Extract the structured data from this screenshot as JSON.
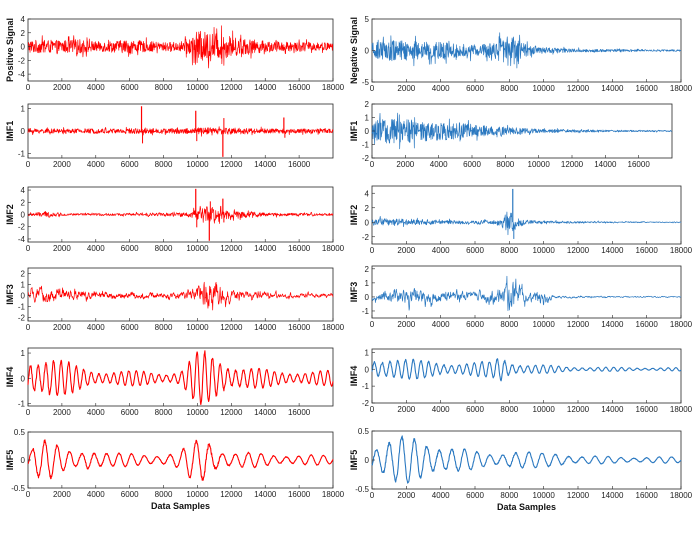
{
  "chart_data": [
    {
      "type": "line",
      "id": "L0",
      "ylabel": "Positive Signal",
      "xlabel": "",
      "color": "#ff0000",
      "ylim": [
        -5,
        4
      ],
      "yticks": [
        -4,
        -2,
        0,
        2,
        4
      ],
      "xlim": [
        0,
        18000
      ],
      "xticks": [
        0,
        2000,
        4000,
        6000,
        8000,
        10000,
        12000,
        14000,
        16000,
        18000
      ],
      "envelope": {
        "x": [
          0,
          1000,
          2000,
          3000,
          4000,
          5000,
          6000,
          7000,
          8000,
          9000,
          9500,
          10000,
          10500,
          11000,
          11500,
          12000,
          13000,
          14000,
          15000,
          16000,
          17000,
          18000
        ],
        "amp": [
          1.6,
          1.6,
          1.5,
          1.8,
          1.2,
          1.4,
          1.6,
          1.3,
          1.0,
          1.2,
          2.0,
          3.8,
          3.6,
          3.4,
          3.0,
          2.4,
          1.8,
          1.4,
          1.2,
          1.2,
          1.0,
          0.9
        ]
      }
    },
    {
      "type": "line",
      "id": "L1",
      "ylabel": "IMF1",
      "xlabel": "",
      "color": "#ff0000",
      "ylim": [
        -1.2,
        1.2
      ],
      "yticks": [
        -1,
        0,
        1
      ],
      "xlim": [
        0,
        18000
      ],
      "xticks": [
        0,
        2000,
        4000,
        6000,
        8000,
        10000,
        12000,
        14000,
        16000
      ],
      "envelope": {
        "x": [
          0,
          2000,
          4000,
          6000,
          8000,
          10000,
          12000,
          14000,
          16000,
          18000
        ],
        "amp": [
          0.18,
          0.16,
          0.18,
          0.2,
          0.18,
          0.24,
          0.26,
          0.18,
          0.16,
          0.16
        ]
      },
      "spikes": {
        "x": [
          6700,
          9900,
          11500,
          15100
        ],
        "y": [
          1.1,
          0.9,
          -1.15,
          0.6
        ]
      }
    },
    {
      "type": "line",
      "id": "L2",
      "ylabel": "IMF2",
      "xlabel": "",
      "color": "#ff0000",
      "ylim": [
        -4.5,
        4.5
      ],
      "yticks": [
        -4,
        -2,
        0,
        2,
        4
      ],
      "xlim": [
        0,
        18000
      ],
      "xticks": [
        0,
        2000,
        4000,
        6000,
        8000,
        10000,
        12000,
        14000,
        16000,
        18000
      ],
      "envelope": {
        "x": [
          0,
          1000,
          2000,
          4000,
          6000,
          8000,
          9500,
          10000,
          10500,
          11000,
          11500,
          12000,
          13000,
          14000,
          16000,
          18000
        ],
        "amp": [
          0.4,
          0.8,
          0.3,
          0.3,
          0.35,
          0.4,
          0.6,
          1.6,
          2.0,
          2.2,
          1.8,
          1.3,
          0.8,
          0.5,
          0.35,
          0.3
        ]
      },
      "spikes": {
        "x": [
          9900,
          10700,
          11500
        ],
        "y": [
          4.2,
          -4.3,
          2.6
        ]
      }
    },
    {
      "type": "line",
      "id": "L3",
      "ylabel": "IMF3",
      "xlabel": "",
      "color": "#ff0000",
      "ylim": [
        -2.3,
        2.5
      ],
      "yticks": [
        -2,
        -1,
        0,
        1,
        2
      ],
      "xlim": [
        0,
        18000
      ],
      "xticks": [
        0,
        2000,
        4000,
        6000,
        8000,
        10000,
        12000,
        14000,
        16000,
        18000
      ],
      "envelope": {
        "x": [
          0,
          1000,
          2000,
          3000,
          4000,
          6000,
          8000,
          9500,
          10000,
          10500,
          11000,
          11500,
          12000,
          13000,
          14000,
          16000,
          18000
        ],
        "amp": [
          0.6,
          1.0,
          0.8,
          0.6,
          0.5,
          0.4,
          0.35,
          0.5,
          1.4,
          2.0,
          1.6,
          1.2,
          0.7,
          0.5,
          0.4,
          0.3,
          0.25
        ]
      }
    },
    {
      "type": "line",
      "id": "L4",
      "ylabel": "IMF4",
      "xlabel": "",
      "color": "#ff0000",
      "ylim": [
        -1.1,
        1.2
      ],
      "yticks": [
        -1,
        0,
        1
      ],
      "xlim": [
        0,
        18000
      ],
      "xticks": [
        0,
        2000,
        4000,
        6000,
        8000,
        10000,
        12000,
        14000,
        16000
      ],
      "envelope": {
        "x": [
          0,
          1000,
          2000,
          3000,
          4000,
          5000,
          6000,
          7000,
          8000,
          9000,
          9500,
          10000,
          10500,
          11000,
          11500,
          12000,
          13000,
          14000,
          15000,
          16000,
          17000,
          18000
        ],
        "amp": [
          0.9,
          1.0,
          0.7,
          0.5,
          0.35,
          0.3,
          0.3,
          0.3,
          0.25,
          0.3,
          0.7,
          1.0,
          1.1,
          1.0,
          0.85,
          0.6,
          0.45,
          0.35,
          0.3,
          0.3,
          0.3,
          0.3
        ]
      }
    },
    {
      "type": "line",
      "id": "L5",
      "ylabel": "IMF5",
      "xlabel": "Data Samples",
      "color": "#ff0000",
      "ylim": [
        -0.5,
        0.5
      ],
      "yticks": [
        -0.5,
        0,
        0.5
      ],
      "xlim": [
        0,
        18000
      ],
      "xticks": [
        0,
        2000,
        4000,
        6000,
        8000,
        10000,
        12000,
        14000,
        16000,
        18000
      ],
      "envelope": {
        "x": [
          0,
          500,
          1000,
          1500,
          2000,
          3000,
          3500,
          4000,
          5000,
          6000,
          8000,
          9000,
          9500,
          10000,
          10500,
          11000,
          12000,
          14000,
          16000,
          18000
        ],
        "amp": [
          0.25,
          0.45,
          0.4,
          0.3,
          0.2,
          0.15,
          0.3,
          0.2,
          0.12,
          0.12,
          0.12,
          0.15,
          0.3,
          0.38,
          0.5,
          0.3,
          0.15,
          0.12,
          0.1,
          0.08
        ]
      }
    },
    {
      "type": "line",
      "id": "R0",
      "ylabel": "Negative Signal",
      "xlabel": "",
      "color": "#2a78c0",
      "ylim": [
        -5,
        5
      ],
      "yticks": [
        -5,
        0,
        5
      ],
      "xlim": [
        0,
        18000
      ],
      "xticks": [
        0,
        2000,
        4000,
        6000,
        8000,
        10000,
        12000,
        14000,
        16000,
        18000
      ],
      "envelope": {
        "x": [
          0,
          1000,
          2000,
          3000,
          4000,
          5000,
          6000,
          7000,
          7500,
          8000,
          8500,
          9000,
          10000,
          11000,
          12000,
          13000,
          14000,
          16000,
          18000
        ],
        "amp": [
          2.0,
          2.8,
          2.6,
          2.4,
          2.2,
          1.8,
          1.6,
          2.2,
          3.2,
          4.6,
          2.8,
          1.6,
          0.9,
          0.6,
          0.45,
          0.35,
          0.3,
          0.25,
          0.2
        ]
      }
    },
    {
      "type": "line",
      "id": "R1",
      "ylabel": "IMF1",
      "xlabel": "",
      "color": "#2a78c0",
      "ylim": [
        -2,
        2
      ],
      "yticks": [
        -2,
        -1,
        0,
        1,
        2
      ],
      "xlim": [
        0,
        18000
      ],
      "xticks": [
        0,
        2000,
        4000,
        6000,
        8000,
        10000,
        12000,
        14000,
        16000
      ],
      "envelope": {
        "x": [
          0,
          1000,
          2000,
          3000,
          4000,
          5000,
          6000,
          7000,
          8000,
          9000,
          10000,
          12000,
          14000,
          16000,
          18000
        ],
        "amp": [
          1.2,
          1.6,
          1.5,
          1.3,
          1.2,
          1.0,
          0.8,
          0.6,
          0.5,
          0.35,
          0.25,
          0.18,
          0.12,
          0.1,
          0.08
        ]
      }
    },
    {
      "type": "line",
      "id": "R2",
      "ylabel": "IMF2",
      "xlabel": "",
      "color": "#2a78c0",
      "ylim": [
        -3,
        5
      ],
      "yticks": [
        -2,
        0,
        2,
        4
      ],
      "xlim": [
        0,
        18000
      ],
      "xticks": [
        0,
        2000,
        4000,
        6000,
        8000,
        10000,
        12000,
        14000,
        16000,
        18000
      ],
      "envelope": {
        "x": [
          0,
          1000,
          2000,
          3000,
          4000,
          5000,
          6000,
          7000,
          7500,
          8000,
          8500,
          9000,
          10000,
          12000,
          14000,
          16000,
          18000
        ],
        "amp": [
          0.7,
          0.8,
          0.7,
          0.6,
          0.5,
          0.45,
          0.4,
          0.5,
          0.9,
          2.4,
          1.2,
          0.5,
          0.3,
          0.2,
          0.15,
          0.1,
          0.08
        ]
      },
      "spikes": {
        "x": [
          8200
        ],
        "y": [
          4.6
        ]
      }
    },
    {
      "type": "line",
      "id": "R3",
      "ylabel": "IMF3",
      "xlabel": "",
      "color": "#2a78c0",
      "ylim": [
        -1.5,
        2.2
      ],
      "yticks": [
        -1,
        0,
        1,
        2
      ],
      "xlim": [
        0,
        18000
      ],
      "xticks": [
        0,
        2000,
        4000,
        6000,
        8000,
        10000,
        12000,
        14000,
        16000,
        18000
      ],
      "envelope": {
        "x": [
          0,
          1000,
          2000,
          3000,
          4000,
          5000,
          6000,
          7000,
          7500,
          8000,
          8500,
          9000,
          10000,
          10500,
          11000,
          12000,
          14000,
          16000,
          18000
        ],
        "amp": [
          0.4,
          0.6,
          0.8,
          0.7,
          0.6,
          0.6,
          0.5,
          0.7,
          1.0,
          2.0,
          1.0,
          0.6,
          0.6,
          0.2,
          0.12,
          0.1,
          0.08,
          0.06,
          0.06
        ]
      }
    },
    {
      "type": "line",
      "id": "R4",
      "ylabel": "IMF4",
      "xlabel": "",
      "color": "#2a78c0",
      "ylim": [
        -2,
        1.2
      ],
      "yticks": [
        -2,
        -1,
        0,
        1
      ],
      "xlim": [
        0,
        18000
      ],
      "xticks": [
        0,
        2000,
        4000,
        6000,
        8000,
        10000,
        12000,
        14000,
        16000,
        18000
      ],
      "envelope": {
        "x": [
          0,
          1000,
          2000,
          3000,
          4000,
          5000,
          6000,
          7000,
          7500,
          8000,
          8500,
          9000,
          10000,
          11000,
          12000,
          14000,
          16000,
          18000
        ],
        "amp": [
          0.7,
          0.8,
          0.6,
          0.55,
          0.5,
          0.4,
          0.4,
          0.5,
          1.0,
          0.6,
          0.4,
          0.3,
          0.25,
          0.2,
          0.15,
          0.12,
          0.1,
          0.1
        ]
      }
    },
    {
      "type": "line",
      "id": "R5",
      "ylabel": "IMF5",
      "xlabel": "Data Samples",
      "color": "#2a78c0",
      "ylim": [
        -0.5,
        0.5
      ],
      "yticks": [
        -0.5,
        0,
        0.5
      ],
      "xlim": [
        0,
        18000
      ],
      "xticks": [
        0,
        2000,
        4000,
        6000,
        8000,
        10000,
        12000,
        14000,
        16000,
        18000
      ],
      "envelope": {
        "x": [
          0,
          1000,
          2000,
          3000,
          4000,
          5000,
          6000,
          7000,
          8000,
          9000,
          10000,
          11000,
          12000,
          14000,
          16000,
          18000
        ],
        "amp": [
          0.3,
          0.38,
          0.4,
          0.38,
          0.32,
          0.22,
          0.15,
          0.12,
          0.2,
          0.15,
          0.12,
          0.15,
          0.08,
          0.06,
          0.06,
          0.05
        ]
      }
    }
  ]
}
